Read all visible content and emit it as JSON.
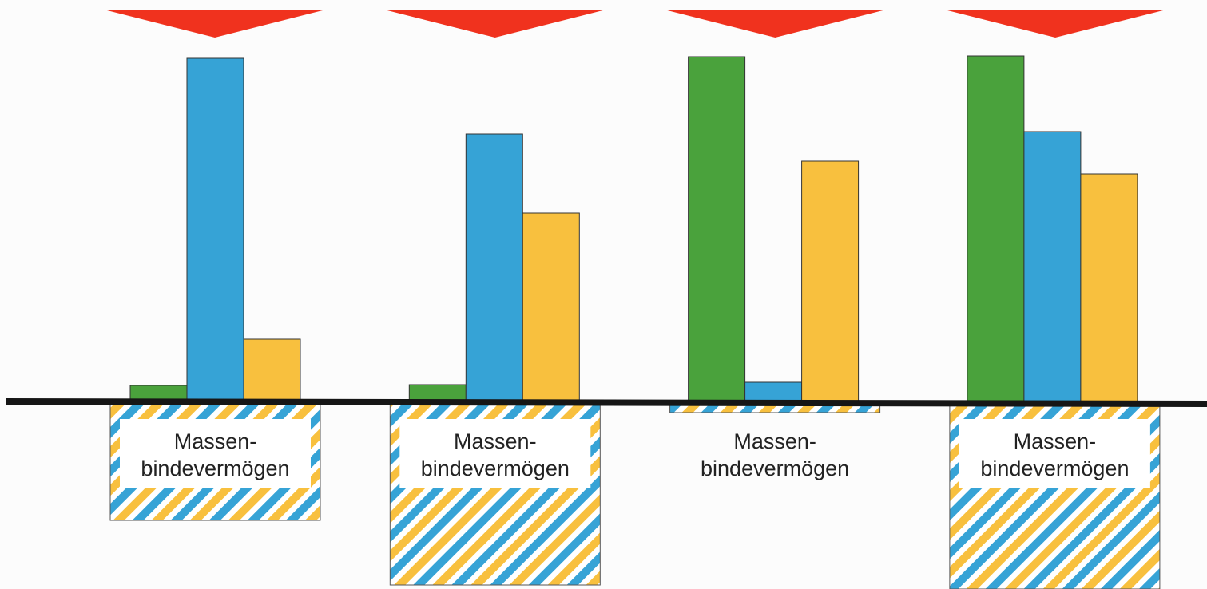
{
  "chart_data": {
    "type": "bar",
    "categories": [
      null,
      null,
      null,
      null
    ],
    "series": [
      {
        "color": "#4aa23c",
        "values": [
          20,
          21,
          432,
          433
        ]
      },
      {
        "color": "#36a3d6",
        "values": [
          430,
          335,
          24,
          338
        ]
      },
      {
        "color": "#f8c03e",
        "values": [
          78,
          236,
          301,
          285
        ]
      }
    ],
    "ylim": [
      -235,
      503
    ],
    "capacity": {
      "label": [
        "Massen-",
        "bindevermögen"
      ],
      "values": [
        -149,
        -230,
        -14,
        -235
      ],
      "colors": [
        "#36a3d6",
        "#f8c03e"
      ]
    },
    "marker_color": "#f0321e"
  }
}
